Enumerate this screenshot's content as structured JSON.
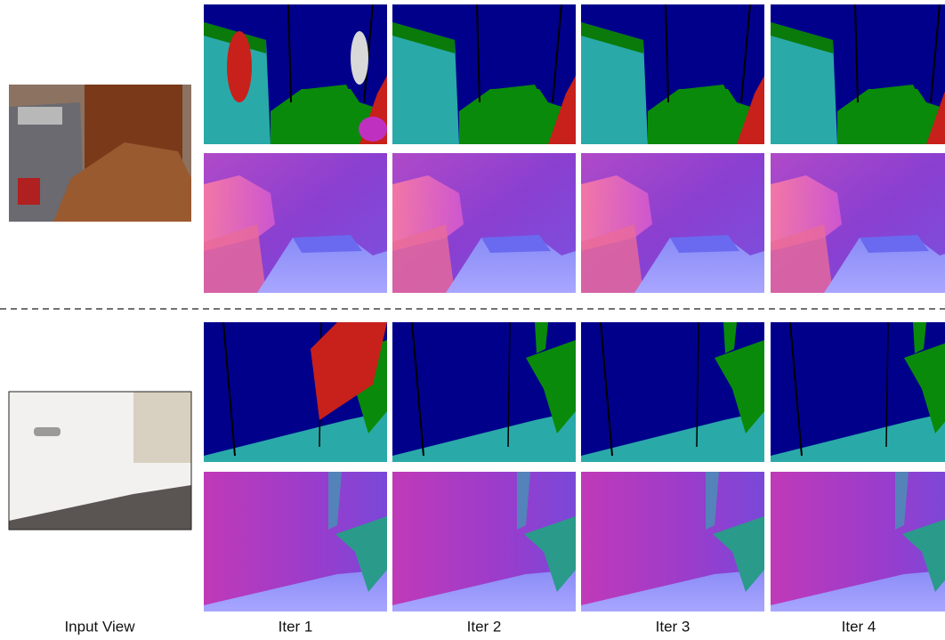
{
  "labels": [
    "Input View",
    "Iter 1",
    "Iter 2",
    "Iter 3",
    "Iter 4"
  ]
}
